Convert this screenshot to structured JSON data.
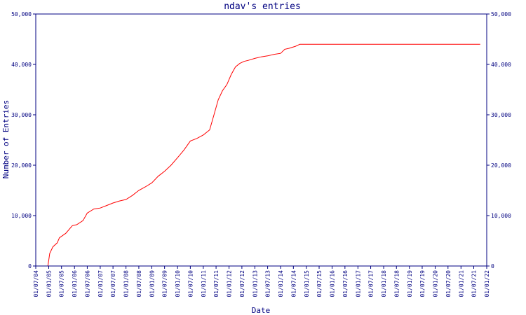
{
  "chart_data": {
    "type": "line",
    "title": "ndav's entries",
    "xlabel": "Date",
    "ylabel": "Number of Entries",
    "grid": false,
    "ylim": [
      0,
      50000
    ],
    "xlim": [
      "2004-07-01",
      "2022-01-01"
    ],
    "yticks": [
      0,
      10000,
      20000,
      30000,
      40000,
      50000
    ],
    "ytick_labels": [
      "0",
      "10,000",
      "20,000",
      "30,000",
      "40,000",
      "50,000"
    ],
    "xtick_labels": [
      "01/07/04",
      "01/01/05",
      "01/07/05",
      "01/01/06",
      "01/07/06",
      "01/01/07",
      "01/07/07",
      "01/01/08",
      "01/07/08",
      "01/01/09",
      "01/07/09",
      "01/01/10",
      "01/07/10",
      "01/01/11",
      "01/07/11",
      "01/01/12",
      "01/07/12",
      "01/01/13",
      "01/07/13",
      "01/01/14",
      "01/07/14",
      "01/01/15",
      "01/07/15",
      "01/01/16",
      "01/07/16",
      "01/01/17",
      "01/07/17",
      "01/01/18",
      "01/07/18",
      "01/01/19",
      "01/07/19",
      "01/01/20",
      "01/07/20",
      "01/01/21",
      "01/07/21",
      "01/01/22"
    ],
    "series": [
      {
        "color": "#ff0000",
        "x": [
          "2004-12-20",
          "2005-01-15",
          "2005-03-01",
          "2005-05-01",
          "2005-06-01",
          "2005-09-01",
          "2005-12-01",
          "2006-02-01",
          "2006-05-01",
          "2006-07-01",
          "2006-10-01",
          "2007-01-01",
          "2007-04-01",
          "2007-07-01",
          "2007-10-01",
          "2008-01-01",
          "2008-04-01",
          "2008-07-01",
          "2008-10-01",
          "2009-01-01",
          "2009-04-01",
          "2009-07-01",
          "2009-10-01",
          "2010-01-01",
          "2010-04-01",
          "2010-07-01",
          "2010-10-01",
          "2011-01-01",
          "2011-04-01",
          "2011-06-01",
          "2011-08-01",
          "2011-10-01",
          "2011-12-01",
          "2012-02-01",
          "2012-04-01",
          "2012-06-01",
          "2012-08-01",
          "2012-10-01",
          "2013-01-01",
          "2013-04-01",
          "2013-07-01",
          "2013-10-01",
          "2014-01-01",
          "2014-03-01",
          "2014-05-01",
          "2014-08-01",
          "2014-10-01",
          "2014-12-01",
          "2015-01-01",
          "2021-10-01"
        ],
        "y": [
          0,
          2500,
          3800,
          4600,
          5600,
          6500,
          8000,
          8200,
          9000,
          10500,
          11300,
          11500,
          12000,
          12500,
          12900,
          13200,
          14000,
          15000,
          15700,
          16500,
          17800,
          18800,
          20000,
          21500,
          23000,
          24800,
          25300,
          26000,
          27000,
          30000,
          33000,
          34800,
          36000,
          38000,
          39500,
          40200,
          40600,
          40800,
          41200,
          41500,
          41700,
          42000,
          42200,
          43000,
          43200,
          43600,
          44000,
          44000,
          44000,
          44000
        ]
      }
    ]
  }
}
